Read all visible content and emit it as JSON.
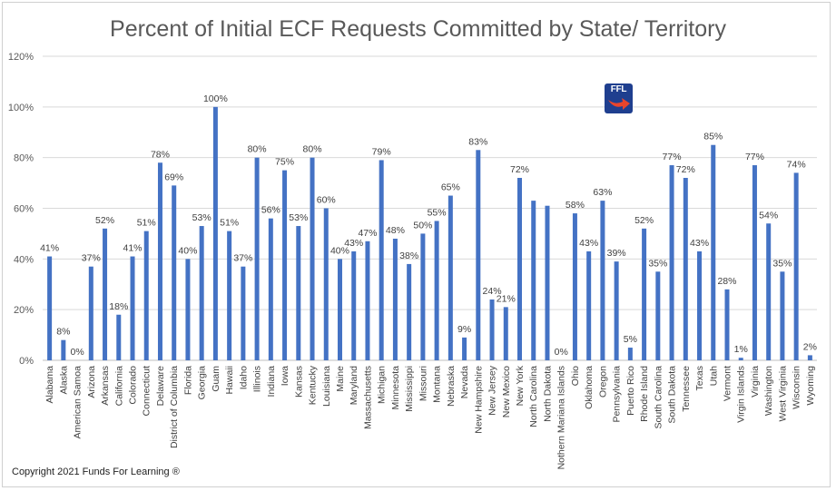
{
  "chart_data": {
    "type": "bar",
    "title": "Percent of Initial ECF Requests Committed by State/ Territory",
    "xlabel": "",
    "ylabel": "",
    "ylim": [
      0,
      120
    ],
    "yticks": [
      "0%",
      "20%",
      "40%",
      "60%",
      "80%",
      "100%",
      "120%"
    ],
    "grid": true,
    "legend": "none",
    "bar_color": "#4472c4",
    "categories": [
      "Alabama",
      "Alaska",
      "American Samoa",
      "Arizona",
      "Arkansas",
      "California",
      "Colorado",
      "Connecticut",
      "Delaware",
      "District of Columbia",
      "Florida",
      "Georgia",
      "Guam",
      "Hawaii",
      "Idaho",
      "Illinois",
      "Indiana",
      "Iowa",
      "Kansas",
      "Kentucky",
      "Louisiana",
      "Maine",
      "Maryland",
      "Massachusetts",
      "Michigan",
      "Minnesota",
      "Mississippi",
      "Missouri",
      "Montana",
      "Nebraska",
      "Nevada",
      "New Hampshire",
      "New Jersey",
      "New Mexico",
      "New York",
      "North Carolina",
      "North Dakota",
      "Nothern Mariana Islands",
      "Ohio",
      "Oklahoma",
      "Oregon",
      "Pennsylvania",
      "Puerto Rico",
      "Rhode Island",
      "South Carolina",
      "South Dakota",
      "Tennessee",
      "Texas",
      "Utah",
      "Vermont",
      "Virgin Islands",
      "Virginia",
      "Washington",
      "West Virginia",
      "Wisconsin",
      "Wyoming"
    ],
    "values": [
      41,
      8,
      0,
      37,
      52,
      18,
      41,
      51,
      78,
      69,
      40,
      53,
      100,
      51,
      37,
      80,
      56,
      75,
      53,
      80,
      60,
      40,
      43,
      47,
      79,
      48,
      38,
      50,
      55,
      65,
      9,
      83,
      24,
      21,
      72,
      63,
      61,
      0,
      58,
      43,
      63,
      39,
      5,
      52,
      35,
      77,
      72,
      43,
      85,
      28,
      1,
      77,
      54,
      35,
      74,
      2
    ],
    "data_labels": [
      "41%",
      "8%",
      "0%",
      "37%",
      "52%",
      "18%",
      "41%",
      "51%",
      "78%",
      "69%",
      "40%",
      "53%",
      "100%",
      "51%",
      "37%",
      "80%",
      "56%",
      "75%",
      "53%",
      "80%",
      "60%",
      "40%",
      "43%",
      "47%",
      "79%",
      "48%",
      "38%",
      "50%",
      "55%",
      "65%",
      "9%",
      "83%",
      "24%",
      "21%",
      "72%",
      "63%",
      "61%",
      "0%",
      "58%",
      "43%",
      "63%",
      "39%",
      "5%",
      "52%",
      "35%",
      "77%",
      "72%",
      "43%",
      "85%",
      "28%",
      "1%",
      "77%",
      "54%",
      "35%",
      "74%",
      "2%"
    ],
    "label_visible": [
      true,
      true,
      true,
      true,
      true,
      true,
      true,
      true,
      true,
      true,
      true,
      true,
      true,
      true,
      true,
      true,
      true,
      true,
      true,
      true,
      true,
      true,
      true,
      true,
      true,
      true,
      true,
      true,
      true,
      true,
      true,
      true,
      true,
      true,
      true,
      false,
      false,
      true,
      true,
      true,
      true,
      true,
      true,
      true,
      true,
      true,
      true,
      true,
      true,
      true,
      true,
      true,
      true,
      true,
      true,
      true
    ]
  },
  "footer": {
    "copyright": "Copyright 2021 Funds For Learning ®"
  },
  "logo": {
    "text": "FFL",
    "colors": {
      "background": "#1f3f8f",
      "accent": "#e8452c"
    }
  }
}
